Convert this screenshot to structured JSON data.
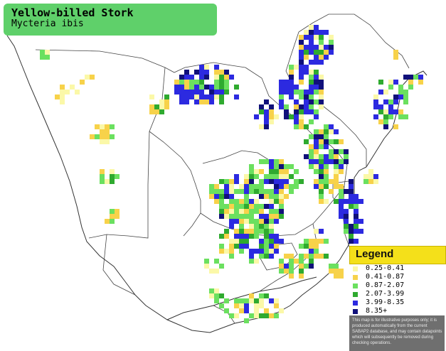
{
  "title": "Yellow-billed Stork",
  "subtitle": "Mycteria ibis",
  "legend": {
    "title": "Legend",
    "items": [
      {
        "label": "0.25-0.41",
        "color": "#fbf8a8"
      },
      {
        "label": "0.41-0.87",
        "color": "#f7d24a"
      },
      {
        "label": "0.87-2.07",
        "color": "#6be05f"
      },
      {
        "label": "2.07-3.99",
        "color": "#2faa2f"
      },
      {
        "label": "3.99-8.35",
        "color": "#2c2ae0"
      },
      {
        "label": "8.35+",
        "color": "#10107a"
      }
    ],
    "disclaimer": "This map is for illustrative purposes only; it is produced automatically from the current SABAP2 database, and may contain datapoints which will subsequently be removed during checking operations."
  }
}
